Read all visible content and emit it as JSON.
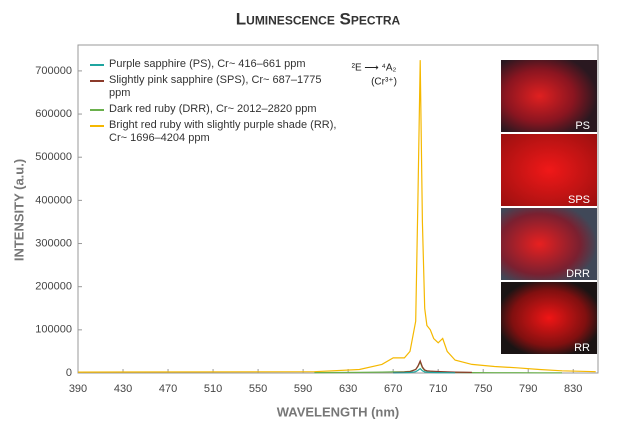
{
  "chart_data": {
    "type": "line",
    "title": "Luminescence Spectra",
    "x_label": "WAVELENGTH (nm)",
    "y_label": "INTENSITY (a.u.)",
    "annotations": [
      "²E ⟶ ⁴A₂",
      "(Cr³⁺)"
    ],
    "inset_labels": [
      "PS",
      "SPS",
      "DRR",
      "RR"
    ],
    "x": [
      390,
      600,
      640,
      660,
      670,
      680,
      685,
      690,
      692,
      694,
      696,
      698,
      700,
      703,
      706,
      710,
      714,
      718,
      725,
      740,
      760,
      780,
      800,
      820,
      850
    ],
    "xlim": [
      390,
      852
    ],
    "xticks": [
      390,
      430,
      470,
      510,
      550,
      590,
      630,
      670,
      710,
      750,
      790,
      830
    ],
    "ylim": [
      0,
      760000
    ],
    "yticks": [
      0,
      100000,
      200000,
      300000,
      400000,
      500000,
      600000,
      700000
    ],
    "grid": false,
    "series": [
      {
        "name": "Purple sapphire (PS), Cr~ 416–661 ppm",
        "color": "#1fa5a0",
        "values": [
          null,
          null,
          null,
          null,
          500,
          800,
          1200,
          3000,
          6000,
          10000,
          5000,
          2500,
          2000,
          1500,
          1200,
          1000,
          800,
          600,
          400,
          null,
          null,
          null,
          null,
          null,
          null
        ]
      },
      {
        "name": "Slightly pink sapphire (SPS), Cr~ 687–1775 ppm",
        "color": "#8b3a2a",
        "values": [
          null,
          null,
          null,
          null,
          1000,
          2000,
          3000,
          8000,
          16000,
          28000,
          14000,
          7000,
          5000,
          4500,
          4000,
          3500,
          3000,
          2500,
          2000,
          1500,
          null,
          null,
          null,
          null,
          null
        ]
      },
      {
        "name": "Dark red ruby (DRR), Cr~ 2012–2820 ppm",
        "color": "#6ab04c",
        "values": [
          null,
          1000,
          1500,
          2000,
          2500,
          3000,
          4000,
          8000,
          15000,
          25000,
          12000,
          6000,
          5000,
          4000,
          3500,
          3000,
          2500,
          2000,
          1500,
          1000,
          800,
          600,
          500,
          400,
          null
        ]
      },
      {
        "name": "Bright red ruby with slightly purple shade (RR), Cr~ 1696–4204 ppm",
        "color": "#f5b800",
        "values": [
          2000,
          3000,
          8000,
          20000,
          35000,
          35000,
          50000,
          120000,
          400000,
          725000,
          350000,
          150000,
          110000,
          100000,
          80000,
          70000,
          80000,
          50000,
          30000,
          20000,
          15000,
          12000,
          8000,
          5000,
          3000
        ]
      }
    ]
  }
}
